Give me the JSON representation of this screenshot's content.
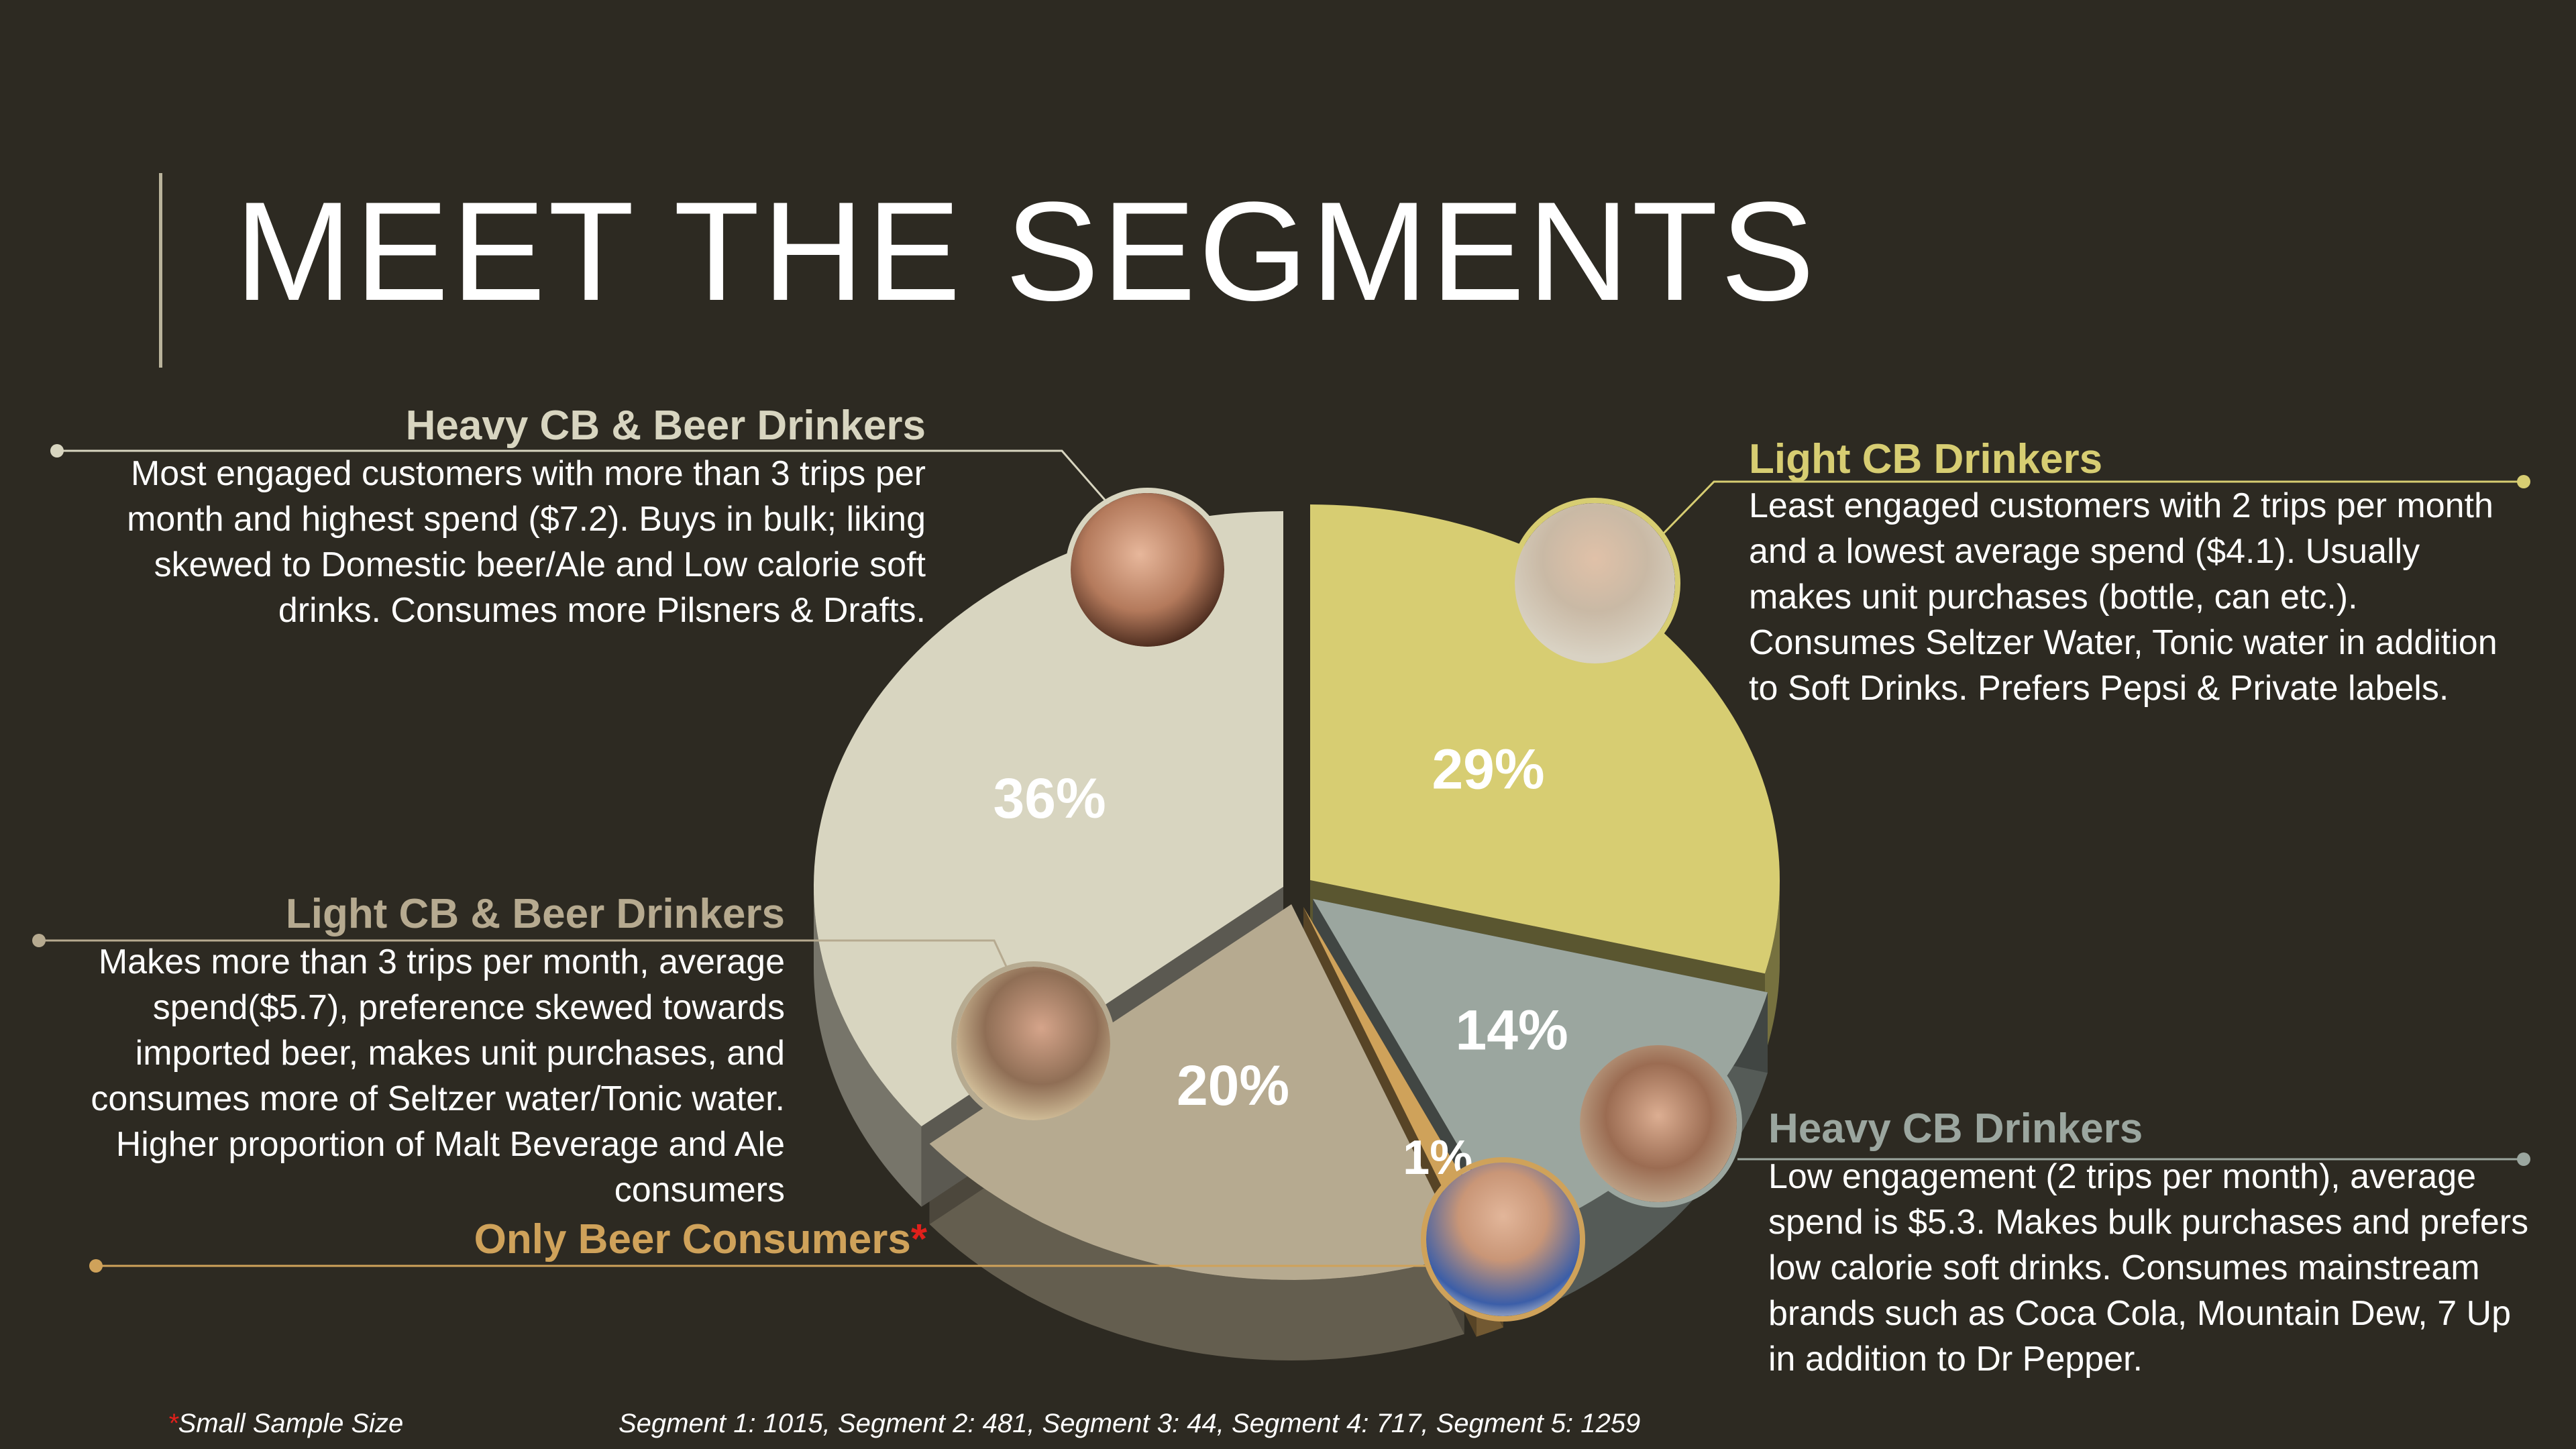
{
  "slide": {
    "title": "MEET THE SEGMENTS"
  },
  "segments": {
    "heavy_cb_beer": {
      "name": "Heavy CB & Beer Drinkers",
      "description": "Most engaged customers with more than 3 trips per month and highest spend ($7.2). Buys in bulk; liking skewed to Domestic beer/Ale and Low calorie soft drinks. Consumes more Pilsners & Drafts.",
      "color": "#d8d5c0"
    },
    "light_cb": {
      "name": "Light CB Drinkers",
      "description": "Least engaged customers with 2 trips per month and a lowest average spend ($4.1). Usually makes unit purchases (bottle, can etc.). Consumes Seltzer Water, Tonic water in addition to Soft Drinks. Prefers Pepsi & Private labels.",
      "color": "#d7cd72"
    },
    "light_cb_beer": {
      "name": "Light CB & Beer Drinkers",
      "description": "Makes more than 3 trips per month, average spend($5.7), preference skewed towards imported beer, makes unit purchases, and consumes more of Seltzer water/Tonic water. Higher proportion of Malt Beverage and Ale consumers",
      "color": "#b6aa90"
    },
    "only_beer": {
      "name": "Only Beer Consumers",
      "star": "*",
      "color": "#cfa25a"
    },
    "heavy_cb": {
      "name": "Heavy CB Drinkers",
      "description": "Low engagement (2 trips per month), average spend is $5.3. Makes bulk purchases and prefers low calorie soft drinks. Consumes mainstream brands such as Coca Cola, Mountain Dew, 7 Up in addition to Dr Pepper.",
      "color": "#9ba69f"
    }
  },
  "footnotes": {
    "star": "*",
    "small_sample": "Small Sample Size",
    "sample_sizes": "Segment 1: 1015, Segment 2: 481, Segment 3: 44, Segment 4: 717, Segment 5: 1259"
  },
  "icons": [
    "person-drinking-photo",
    "man-with-glasses-photo",
    "man-drinking-beer-photo",
    "woman-drinking-photo",
    "smiling-man-photo"
  ],
  "chart_data": {
    "type": "pie",
    "style": "3d-exploded",
    "slices": [
      {
        "label": "Light CB Drinkers",
        "value": 29,
        "display": "29%",
        "color": "#d7cd72"
      },
      {
        "label": "Heavy CB Drinkers",
        "value": 14,
        "display": "14%",
        "color": "#9ba69f"
      },
      {
        "label": "Only Beer Consumers",
        "value": 1,
        "display": "1%",
        "color": "#cfa25a"
      },
      {
        "label": "Light CB & Beer Drinkers",
        "value": 20,
        "display": "20%",
        "color": "#b6aa90"
      },
      {
        "label": "Heavy CB & Beer Drinkers",
        "value": 36,
        "display": "36%",
        "color": "#d8d5c0"
      }
    ]
  }
}
